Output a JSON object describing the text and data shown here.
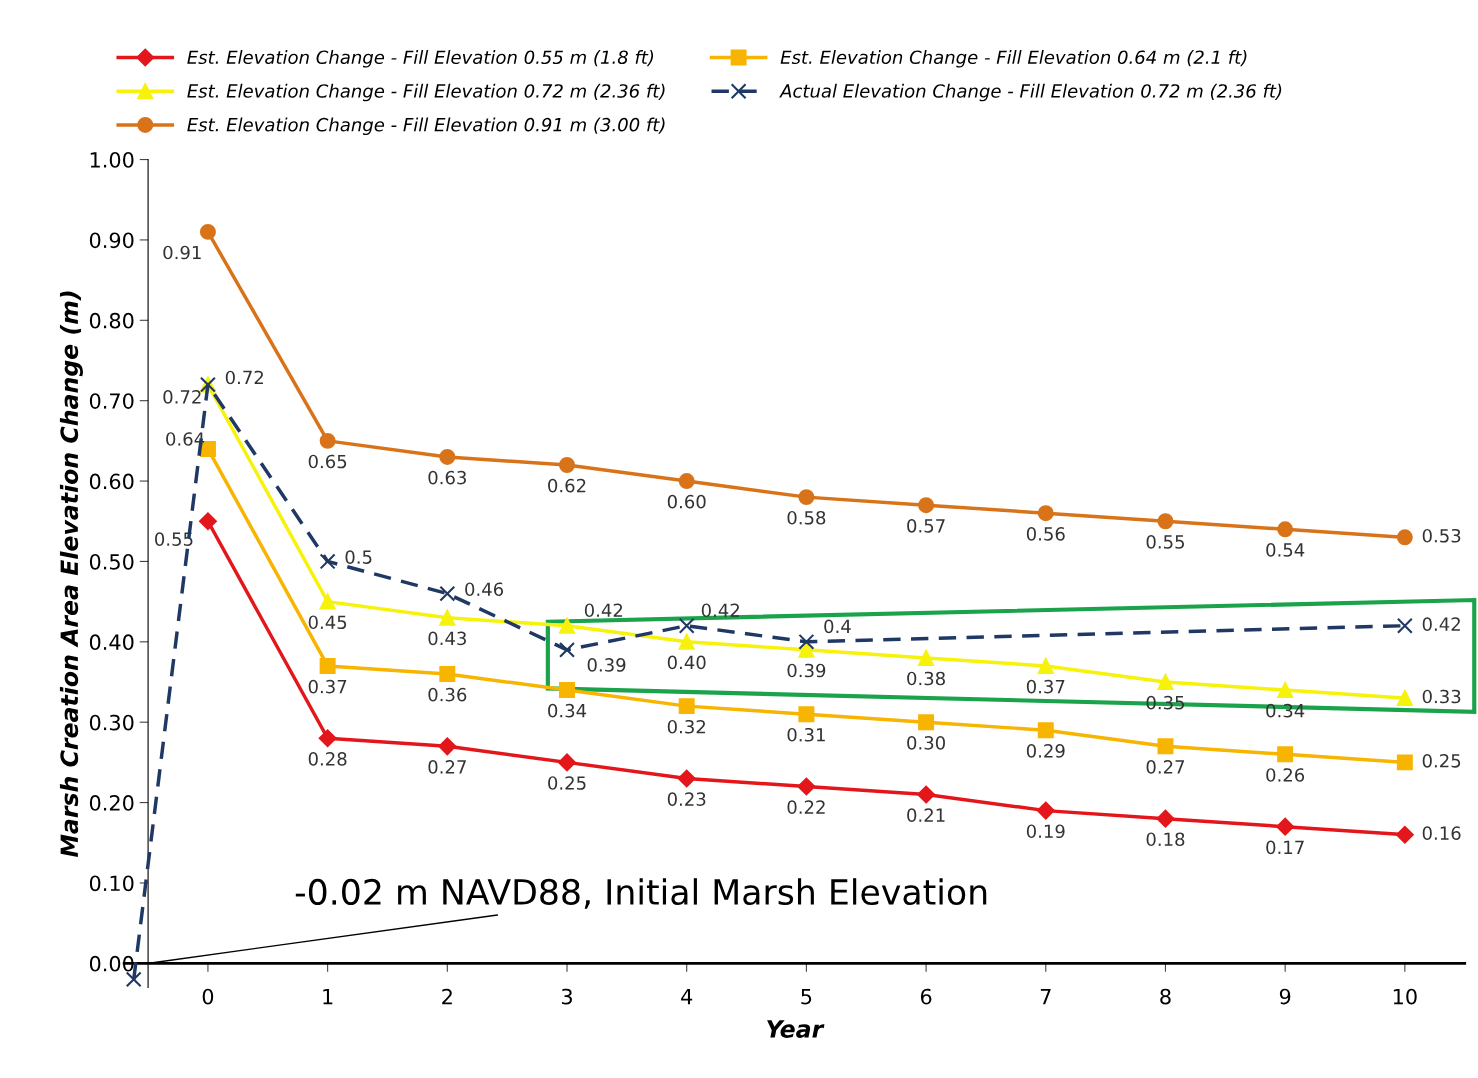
{
  "chart_data": {
    "type": "line",
    "xlabel": "Year",
    "ylabel": "Marsh Creation Area Elevation Change (m)",
    "xlim": [
      -0.7,
      10.5
    ],
    "ylim": [
      -0.03,
      1.0
    ],
    "xticks": [
      0,
      1,
      2,
      3,
      4,
      5,
      6,
      7,
      8,
      9,
      10
    ],
    "yticks": [
      {
        "value": 0,
        "label": "0.00"
      },
      {
        "value": 0.1,
        "label": "0.10"
      },
      {
        "value": 0.2,
        "label": "0.20"
      },
      {
        "value": 0.3,
        "label": "0.30"
      },
      {
        "value": 0.4,
        "label": "0.40"
      },
      {
        "value": 0.5,
        "label": "0.50"
      },
      {
        "value": 0.6,
        "label": "0.60"
      },
      {
        "value": 0.7,
        "label": "0.70"
      },
      {
        "value": 0.8,
        "label": "0.80"
      },
      {
        "value": 0.9,
        "label": "0.90"
      },
      {
        "value": 1.0,
        "label": "1.00"
      }
    ],
    "x": [
      0,
      1,
      2,
      3,
      4,
      5,
      6,
      7,
      8,
      9,
      10
    ],
    "series": [
      {
        "name": "Est. Elevation Change - Fill Elevation 0.55 m (1.8 ft)",
        "color": "#e3171b",
        "marker": "diamond",
        "line_style": "solid",
        "values": [
          0.55,
          0.28,
          0.27,
          0.25,
          0.23,
          0.22,
          0.21,
          0.19,
          0.18,
          0.17,
          0.16
        ],
        "value_labels": [
          "0.55",
          "0.28",
          "0.27",
          "0.25",
          "0.23",
          "0.22",
          "0.21",
          "0.19",
          "0.18",
          "0.17",
          "0.16"
        ]
      },
      {
        "name": "Est. Elevation Change - Fill Elevation 0.64 m (2.1 ft)",
        "color": "#f7b400",
        "marker": "square",
        "line_style": "solid",
        "values": [
          0.64,
          0.37,
          0.36,
          0.34,
          0.32,
          0.31,
          0.3,
          0.29,
          0.27,
          0.26,
          0.25
        ],
        "value_labels": [
          "0.64",
          "0.37",
          "0.36",
          "0.34",
          "0.32",
          "0.31",
          "0.30",
          "0.29",
          "0.27",
          "0.26",
          "0.25"
        ]
      },
      {
        "name": "Est. Elevation Change - Fill Elevation 0.72 m (2.36 ft)",
        "color": "#f7f20c",
        "marker": "triangle",
        "line_style": "solid",
        "values": [
          0.72,
          0.45,
          0.43,
          0.42,
          0.4,
          0.39,
          0.38,
          0.37,
          0.35,
          0.34,
          0.33
        ],
        "value_labels": [
          "0.72",
          "0.45",
          "0.43",
          "0.42",
          "0.40",
          "0.39",
          "0.38",
          "0.37",
          "0.35",
          "0.34",
          "0.33"
        ]
      },
      {
        "name": "Actual Elevation Change - Fill Elevation 0.72 m (2.36 ft)",
        "color": "#1f3864",
        "marker": "cross",
        "line_style": "dashed",
        "x": [
          -0.62,
          0,
          1,
          2,
          3,
          4,
          5,
          10
        ],
        "values": [
          -0.02,
          0.72,
          0.5,
          0.46,
          0.39,
          0.42,
          0.4,
          0.42
        ],
        "value_labels": [
          null,
          "0.72",
          "0.5",
          "0.46",
          "0.39",
          "0.42",
          "0.4",
          "0.42"
        ]
      },
      {
        "name": "Est. Elevation Change - Fill Elevation 0.91 m (3.00 ft)",
        "color": "#d9731a",
        "marker": "circle",
        "line_style": "solid",
        "values": [
          0.91,
          0.65,
          0.63,
          0.62,
          0.6,
          0.58,
          0.57,
          0.56,
          0.55,
          0.54,
          0.53
        ],
        "value_labels": [
          "0.91",
          "0.65",
          "0.63",
          "0.62",
          "0.60",
          "0.58",
          "0.57",
          "0.56",
          "0.55",
          "0.54",
          "0.53"
        ]
      }
    ],
    "legend": "top",
    "grid": false,
    "annotations": [
      "-0.02 m NAVD88, Initial Marsh Elevation"
    ]
  }
}
